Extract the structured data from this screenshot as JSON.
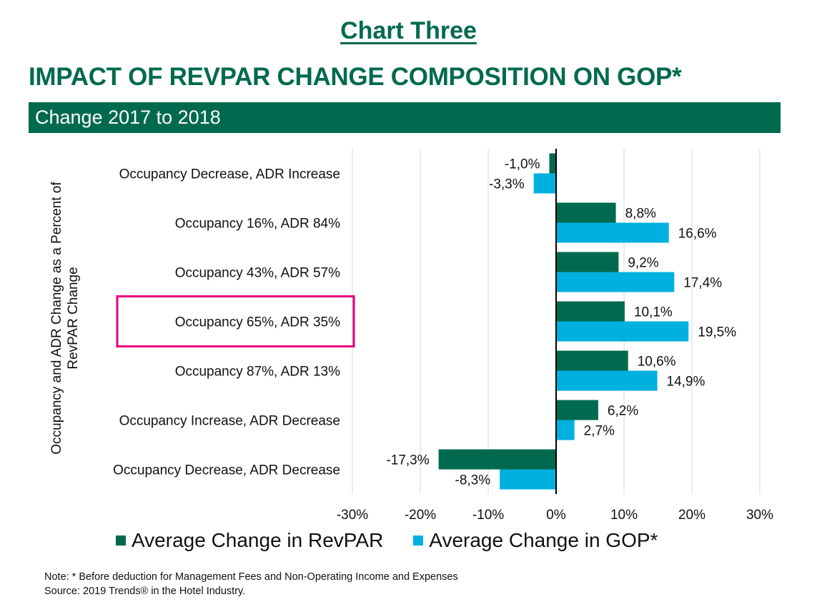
{
  "header": {
    "kicker": "Chart Three",
    "title": "IMPACT OF REVPAR CHANGE COMPOSITION ON GOP*",
    "band": "Change 2017 to 2018"
  },
  "colors": {
    "brand": "#006a4e",
    "revpar": "#006a4e",
    "gop": "#00b0de",
    "highlight": "#e6007e"
  },
  "chart_data": {
    "type": "bar",
    "orientation": "horizontal",
    "categories": [
      "Occupancy Decrease, ADR Increase",
      "Occupancy 16%, ADR 84%",
      "Occupancy 43%, ADR 57%",
      "Occupancy 65%, ADR 35%",
      "Occupancy 87%, ADR 13%",
      "Occupancy Increase, ADR Decrease",
      "Occupancy Decrease, ADR Decrease"
    ],
    "series": [
      {
        "name": "Average Change in RevPAR",
        "values": [
          -1.0,
          8.8,
          9.2,
          10.1,
          10.6,
          6.2,
          -17.3
        ],
        "labels": [
          "-1,0%",
          "8,8%",
          "9,2%",
          "10,1%",
          "10,6%",
          "6,2%",
          "-17,3%"
        ]
      },
      {
        "name": "Average Change in GOP*",
        "values": [
          -3.3,
          16.6,
          17.4,
          19.5,
          14.9,
          2.7,
          -8.3
        ],
        "labels": [
          "-3,3%",
          "16,6%",
          "17,4%",
          "19,5%",
          "14,9%",
          "2,7%",
          "-8,3%"
        ]
      }
    ],
    "ylabel": "Occupancy and ADR Change as a Percent of RevPAR Change",
    "ylabel_lines": [
      "Occupancy and ADR Change as a Percent of",
      "RevPAR Change"
    ],
    "xlim": [
      -30,
      30
    ],
    "xticks": [
      -30,
      -20,
      -10,
      0,
      10,
      20,
      30
    ],
    "xtick_labels": [
      "-30%",
      "-20%",
      "-10%",
      "0%",
      "10%",
      "20%",
      "30%"
    ],
    "grid": "vertical",
    "legend": "bottom",
    "highlighted_category": "Occupancy 65%, ADR 35%"
  },
  "footer": {
    "note": "Note: * Before deduction for Management Fees and Non-Operating Income and Expenses",
    "source": "Source: 2019 Trends® in the Hotel Industry."
  }
}
